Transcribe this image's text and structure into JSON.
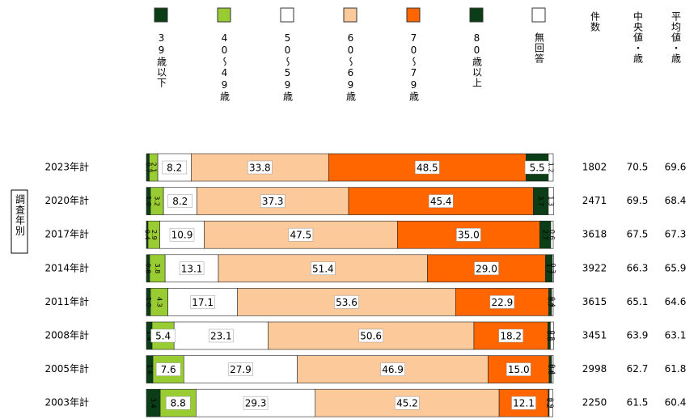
{
  "chart_data": {
    "type": "stacked-bar-100",
    "side_label": "調査年別",
    "categories": [
      "2023年計",
      "2020年計",
      "2017年計",
      "2014年計",
      "2011年計",
      "2008年計",
      "2005年計",
      "2003年計"
    ],
    "xlim": [
      0,
      100
    ],
    "series": [
      {
        "name": "39歳以下",
        "color": "#0b3d17",
        "values": [
          0.7,
          1.0,
          0.4,
          0.8,
          1.0,
          1.4,
          1.6,
          3.4
        ],
        "value_labels": [
          "0.7",
          "1.0",
          "0.4",
          "0.8",
          "1.0",
          "1.4",
          "1.6",
          "3.4"
        ]
      },
      {
        "name": "40～49歳",
        "color": "#99cc33",
        "values": [
          2.1,
          3.2,
          2.9,
          3.8,
          4.3,
          5.4,
          7.6,
          8.8
        ],
        "value_labels": [
          "2.1",
          "3.2",
          "2.9",
          "3.8",
          "4.3",
          "5.4",
          "7.6",
          "8.8"
        ]
      },
      {
        "name": "50～59歳",
        "color": "#ffffff",
        "values": [
          8.2,
          8.2,
          10.9,
          13.1,
          17.1,
          23.1,
          27.9,
          29.3
        ],
        "value_labels": [
          "8.2",
          "8.2",
          "10.9",
          "13.1",
          "17.1",
          "23.1",
          "27.9",
          "29.3"
        ]
      },
      {
        "name": "60～69歳",
        "color": "#fcc99b",
        "values": [
          33.8,
          37.3,
          47.5,
          51.4,
          53.6,
          50.6,
          46.9,
          45.2
        ],
        "value_labels": [
          "33.8",
          "37.3",
          "47.5",
          "51.4",
          "53.6",
          "50.6",
          "46.9",
          "45.2"
        ]
      },
      {
        "name": "70～79歳",
        "color": "#ff6600",
        "values": [
          48.5,
          45.4,
          35.0,
          29.0,
          22.9,
          18.2,
          15.0,
          12.1
        ],
        "value_labels": [
          "48.5",
          "45.4",
          "35.0",
          "29.0",
          "22.9",
          "18.2",
          "15.0",
          "12.1"
        ]
      },
      {
        "name": "80歳以上",
        "color": "#0b3d17",
        "values": [
          5.5,
          3.7,
          2.7,
          1.7,
          0.7,
          0.6,
          0.6,
          0.2
        ],
        "value_labels": [
          "5.5",
          "3.7",
          "2.7",
          "1.7",
          "0.7",
          "0.6",
          "0.6",
          "0.2"
        ]
      },
      {
        "name": "無回答",
        "color": "#ffffff",
        "values": [
          1.2,
          1.3,
          0.6,
          0.3,
          0.4,
          0.8,
          0.4,
          0.9
        ],
        "value_labels": [
          "1.2",
          "1.3",
          "0.6",
          "0.3",
          "0.4",
          "0.8",
          "0.4",
          "0.9"
        ]
      }
    ],
    "columns": [
      {
        "name": "件数",
        "values": [
          1802,
          2471,
          3618,
          3922,
          3615,
          3451,
          2998,
          2250
        ]
      },
      {
        "name": "中央値・歳",
        "values": [
          70.5,
          69.5,
          67.5,
          66.3,
          65.1,
          63.9,
          62.7,
          61.5
        ]
      },
      {
        "name": "平均値・歳",
        "values": [
          69.6,
          68.4,
          67.3,
          65.9,
          64.6,
          63.1,
          61.8,
          60.4
        ]
      }
    ]
  }
}
